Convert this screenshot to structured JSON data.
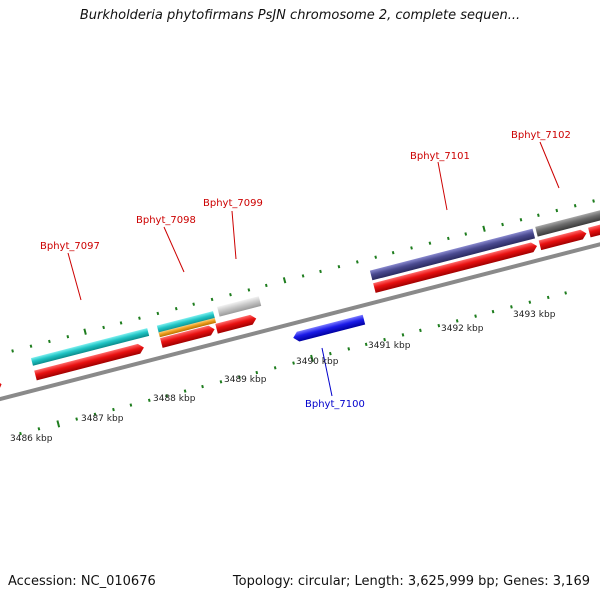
{
  "header": {
    "title": "Burkholderia phytofirmans PsJN chromosome 2, complete sequen..."
  },
  "footer": {
    "accession": "Accession: NC_010676",
    "summary": "Topology: circular; Length: 3,625,999 bp; Genes: 3,169"
  },
  "colors": {
    "backbone": "#8a8a8a",
    "tick": "#1e7d1e",
    "cds": "#e81010",
    "forward_label": "#cc0000",
    "reverse_label": "#0000cc",
    "gene_cyan": "#1fc4c4",
    "gene_orange": "#f0a020",
    "gene_lightgray": "#c8c8c8",
    "gene_slate": "#4a4a90",
    "gene_darkgray": "#6a6a6a",
    "gene_blue": "#1a1ae8"
  },
  "scale": {
    "ticks": [
      {
        "label": "3486 kbp"
      },
      {
        "label": "3487 kbp"
      },
      {
        "label": "3488 kbp"
      },
      {
        "label": "3489 kbp"
      },
      {
        "label": "3490 kbp"
      },
      {
        "label": "3491 kbp"
      },
      {
        "label": "3492 kbp"
      },
      {
        "label": "3493 kbp"
      }
    ]
  },
  "genes": [
    {
      "name": "Bphyt_7097",
      "strand": "forward",
      "color": "gene_cyan"
    },
    {
      "name": "Bphyt_7098",
      "strand": "forward",
      "color": "gene_cyan"
    },
    {
      "name": "Bphyt_7099",
      "strand": "forward",
      "color": "gene_lightgray"
    },
    {
      "name": "Bphyt_7100",
      "strand": "reverse",
      "color": "gene_blue"
    },
    {
      "name": "Bphyt_7101",
      "strand": "forward",
      "color": "gene_slate"
    },
    {
      "name": "Bphyt_7102",
      "strand": "forward",
      "color": "gene_darkgray"
    }
  ]
}
